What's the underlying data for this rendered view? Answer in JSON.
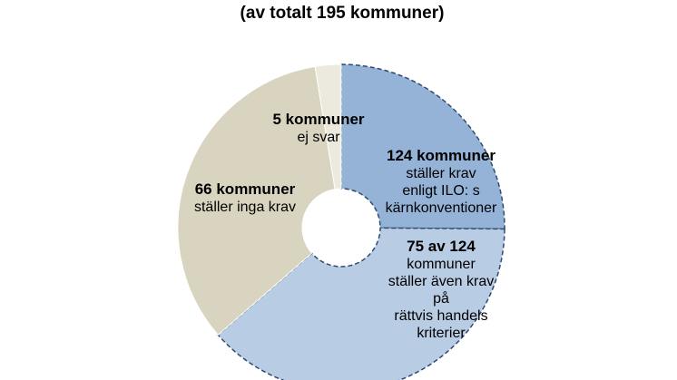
{
  "chart_data": {
    "type": "pie",
    "variant": "donut",
    "title": "(av totalt 195 kommuner)",
    "total": 195,
    "colors": {
      "ej_svar": "#ece9df",
      "inga_krav": "#d9d4bf",
      "ilo": "#95b3d7",
      "rattvis": "#b8cce4",
      "dashed_border": "#2e4a73"
    },
    "slices": [
      {
        "key": "ilo_only",
        "value": 49,
        "color_key": "ilo",
        "bold": "124 kommuner",
        "lines": [
          "ställer krav",
          "enligt ILO: s",
          "kärnkonventioner"
        ]
      },
      {
        "key": "rattvis",
        "value": 75,
        "color_key": "rattvis",
        "bold": "75 av 124",
        "lines": [
          "kommuner",
          "ställer även krav",
          "på",
          "rättvis handels",
          "kriterier"
        ]
      },
      {
        "key": "inga_krav",
        "value": 66,
        "color_key": "inga_krav",
        "bold": "66 kommuner",
        "lines": [
          "ställer inga krav"
        ]
      },
      {
        "key": "ej_svar",
        "value": 5,
        "color_key": "ej_svar",
        "bold": "5 kommuner",
        "lines": [
          "ej svar"
        ]
      }
    ],
    "legend": "none"
  }
}
